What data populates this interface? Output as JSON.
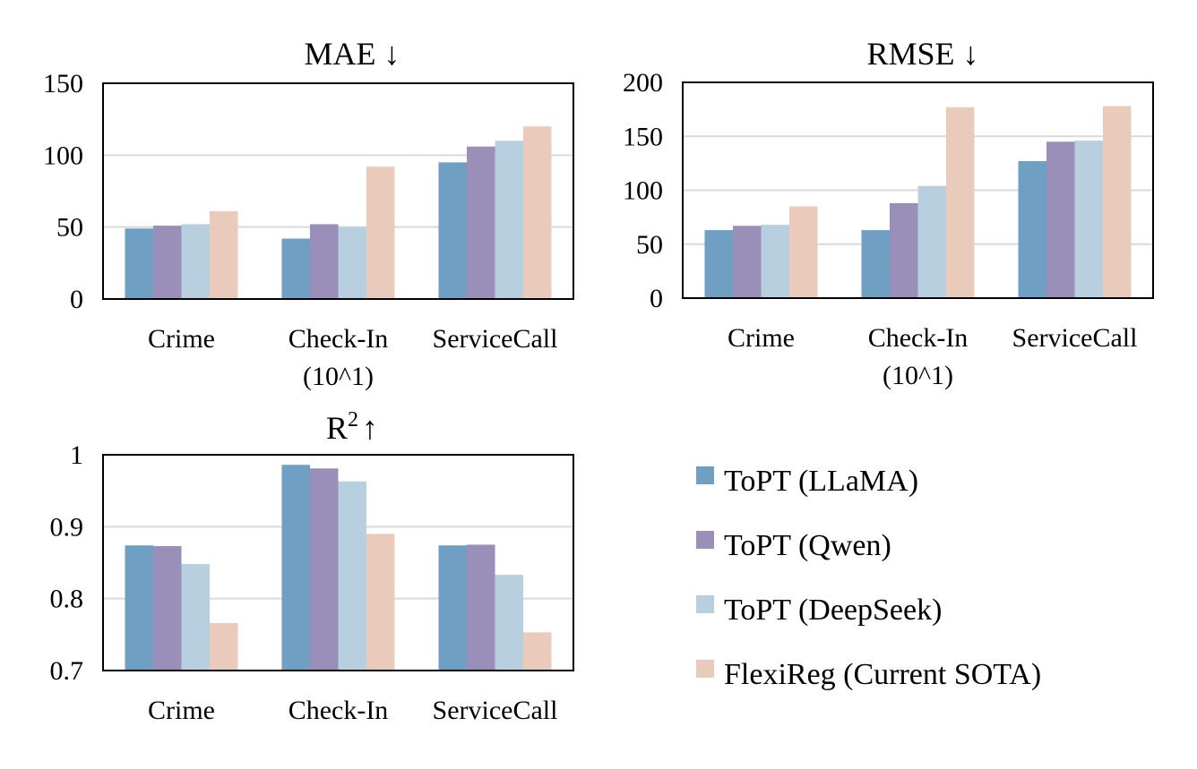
{
  "chart_data": [
    {
      "type": "bar",
      "title": "MAE ↓",
      "categories": [
        [
          "Crime"
        ],
        [
          "Check-In",
          "(10^1)"
        ],
        [
          "ServiceCall"
        ]
      ],
      "series": [
        {
          "name": "ToPT (LLaMA)",
          "values": [
            49,
            42,
            95
          ]
        },
        {
          "name": "ToPT (Qwen)",
          "values": [
            51,
            52,
            106
          ]
        },
        {
          "name": "ToPT (DeepSeek)",
          "values": [
            52,
            50,
            110
          ]
        },
        {
          "name": "FlexiReg (Current SOTA)",
          "values": [
            61,
            92,
            120
          ]
        }
      ],
      "ylim": [
        0,
        150
      ],
      "yticks": [
        0,
        50,
        100,
        150
      ],
      "ytick_labels": [
        "0",
        "50",
        "100",
        "150"
      ],
      "grid": true
    },
    {
      "type": "bar",
      "title": "RMSE ↓",
      "categories": [
        [
          "Crime"
        ],
        [
          "Check-In",
          "(10^1)"
        ],
        [
          "ServiceCall"
        ]
      ],
      "series": [
        {
          "name": "ToPT (LLaMA)",
          "values": [
            63,
            63,
            127
          ]
        },
        {
          "name": "ToPT (Qwen)",
          "values": [
            67,
            88,
            145
          ]
        },
        {
          "name": "ToPT (DeepSeek)",
          "values": [
            68,
            104,
            146
          ]
        },
        {
          "name": "FlexiReg (Current SOTA)",
          "values": [
            85,
            177,
            178
          ]
        }
      ],
      "ylim": [
        0,
        200
      ],
      "yticks": [
        0,
        50,
        100,
        150,
        200
      ],
      "ytick_labels": [
        "0",
        "50",
        "100",
        "150",
        "200"
      ],
      "grid": true
    },
    {
      "type": "bar",
      "title": "R2 ↑",
      "title_main": "R",
      "title_sup": "2",
      "title_arrow": "↑",
      "categories": [
        [
          "Crime"
        ],
        [
          "Check-In"
        ],
        [
          "ServiceCall"
        ]
      ],
      "series": [
        {
          "name": "ToPT (LLaMA)",
          "values": [
            0.874,
            0.986,
            0.874
          ]
        },
        {
          "name": "ToPT (Qwen)",
          "values": [
            0.873,
            0.981,
            0.875
          ]
        },
        {
          "name": "ToPT (DeepSeek)",
          "values": [
            0.848,
            0.963,
            0.833
          ]
        },
        {
          "name": "FlexiReg (Current SOTA)",
          "values": [
            0.766,
            0.89,
            0.753
          ]
        }
      ],
      "ylim": [
        0.7,
        1.0
      ],
      "yticks": [
        0.7,
        0.8,
        0.9,
        1.0
      ],
      "ytick_labels": [
        "0.7",
        "0.8",
        "0.9",
        "1"
      ],
      "grid": true
    }
  ],
  "legend": {
    "placement": "bottom-right",
    "items": [
      {
        "label": "ToPT (LLaMA)",
        "color": "#6f9fc2"
      },
      {
        "label": "ToPT (Qwen)",
        "color": "#9a8fb8"
      },
      {
        "label": "ToPT (DeepSeek)",
        "color": "#b8cfe0"
      },
      {
        "label": "FlexiReg (Current SOTA)",
        "color": "#eacbbb"
      }
    ]
  }
}
